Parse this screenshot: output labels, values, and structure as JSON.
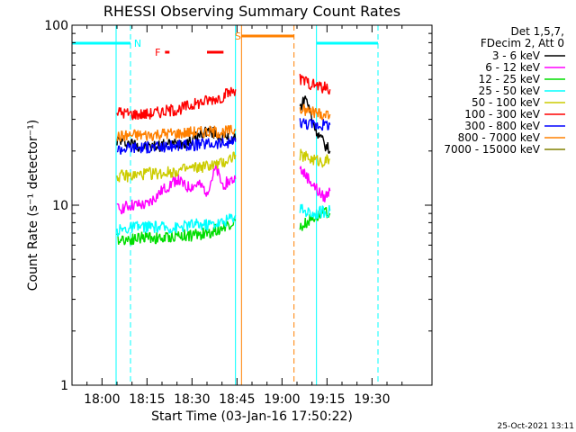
{
  "chart_data": {
    "type": "line",
    "title": "RHESSI Observing Summary Count Rates",
    "xlabel": "Start Time (03-Jan-16 17:50:22)",
    "ylabel": "Count Rate (s⁻¹ detector⁻¹)",
    "yscale": "log",
    "ylim": [
      1,
      100
    ],
    "xlim_minutes": [
      0,
      120
    ],
    "x_tick_labels": [
      "18:00",
      "18:15",
      "18:30",
      "18:45",
      "19:00",
      "19:15",
      "19:30"
    ],
    "y_tick_labels": [
      "1",
      "10",
      "100"
    ],
    "legend_header": [
      "Det 1,5,7,",
      "FDecim 2, Att 0"
    ],
    "legend": [
      {
        "name": "3 - 6 keV",
        "color": "#000000"
      },
      {
        "name": "6 - 12 keV",
        "color": "#ff00ff"
      },
      {
        "name": "12 - 25 keV",
        "color": "#00dd00"
      },
      {
        "name": "25 - 50 keV",
        "color": "#00ffff"
      },
      {
        "name": "50 - 100 keV",
        "color": "#cccc00"
      },
      {
        "name": "100 - 300 keV",
        "color": "#ff0000"
      },
      {
        "name": "300 - 800 keV",
        "color": "#0000ff"
      },
      {
        "name": "800 - 7000 keV",
        "color": "#ff8000"
      },
      {
        "name": "7000 - 15000 keV",
        "color": "#808000"
      }
    ],
    "flags": {
      "N": {
        "label": "N",
        "color": "#00ffff",
        "x_ranges_min": [
          [
            0,
            19.5
          ],
          [
            81.5,
            102
          ]
        ]
      },
      "F": {
        "label": "F",
        "color": "#ff0000",
        "x_ranges_min": [
          [
            31,
            32.5
          ],
          [
            45,
            50.5
          ]
        ]
      },
      "S": {
        "label": "S",
        "color": "#ff8000",
        "x_ranges_min": [
          [
            56.5,
            74
          ]
        ]
      }
    },
    "vertical_markers": [
      {
        "x_min": 14.7,
        "color": "#00ffff",
        "style": "solid"
      },
      {
        "x_min": 19.5,
        "color": "#00ffff",
        "style": "dashed"
      },
      {
        "x_min": 54.5,
        "color": "#00ffff",
        "style": "solid"
      },
      {
        "x_min": 56.5,
        "color": "#ff8000",
        "style": "solid"
      },
      {
        "x_min": 74,
        "color": "#ff8000",
        "style": "dashed"
      },
      {
        "x_min": 81.5,
        "color": "#00ffff",
        "style": "solid"
      },
      {
        "x_min": 102,
        "color": "#00ffff",
        "style": "dashed"
      }
    ],
    "series": [
      {
        "name": "3 - 6 keV",
        "color": "#000000",
        "segments": [
          {
            "t": [
              15,
              25,
              35,
              40,
              45,
              50,
              54.5
            ],
            "y": [
              23,
              21,
              22,
              23,
              26,
              24,
              23
            ]
          },
          {
            "t": [
              76,
              78,
              80,
              82,
              84,
              86
            ],
            "y": [
              35,
              40,
              30,
              25,
              22,
              20
            ]
          }
        ]
      },
      {
        "name": "6 - 12 keV",
        "color": "#ff00ff",
        "segments": [
          {
            "t": [
              15,
              20,
              25,
              30,
              35,
              38,
              42,
              45,
              48,
              50,
              54.5
            ],
            "y": [
              9.5,
              10,
              10,
              12,
              14,
              12.5,
              13,
              12,
              16,
              13,
              14
            ]
          },
          {
            "t": [
              76,
              79,
              82,
              84,
              86
            ],
            "y": [
              16,
              14,
              12,
              11,
              12
            ]
          }
        ]
      },
      {
        "name": "12 - 25 keV",
        "color": "#00dd00",
        "segments": [
          {
            "t": [
              15,
              20,
              25,
              30,
              35,
              40,
              45,
              50,
              54.5
            ],
            "y": [
              6.5,
              6.5,
              6.7,
              6.5,
              6.8,
              6.8,
              7,
              7.5,
              8.2
            ]
          },
          {
            "t": [
              76,
              80,
              84,
              86
            ],
            "y": [
              7.5,
              8.5,
              9,
              9
            ]
          }
        ]
      },
      {
        "name": "25 - 50 keV",
        "color": "#00ffff",
        "segments": [
          {
            "t": [
              15,
              20,
              25,
              30,
              35,
              40,
              45,
              50,
              54.5
            ],
            "y": [
              7.2,
              7.5,
              7.6,
              7.5,
              7.5,
              7.8,
              7.8,
              8,
              8.8
            ]
          },
          {
            "t": [
              76,
              80,
              84,
              86
            ],
            "y": [
              9.5,
              9,
              9.2,
              9.3
            ]
          }
        ]
      },
      {
        "name": "50 - 100 keV",
        "color": "#cccc00",
        "segments": [
          {
            "t": [
              15,
              20,
              25,
              30,
              35,
              40,
              45,
              50,
              54.5
            ],
            "y": [
              14.5,
              14.5,
              15,
              15,
              15.5,
              16,
              16.5,
              17,
              19
            ]
          },
          {
            "t": [
              76,
              80,
              84,
              86
            ],
            "y": [
              19,
              18,
              17.5,
              18
            ]
          }
        ]
      },
      {
        "name": "100 - 300 keV",
        "color": "#ff0000",
        "segments": [
          {
            "t": [
              15,
              20,
              25,
              30,
              35,
              40,
              45,
              50,
              54.5
            ],
            "y": [
              33,
              32,
              32,
              33,
              34,
              36,
              38,
              40,
              44
            ]
          },
          {
            "t": [
              76,
              80,
              84,
              86
            ],
            "y": [
              50,
              47,
              45,
              44
            ]
          }
        ]
      },
      {
        "name": "300 - 800 keV",
        "color": "#0000ff",
        "segments": [
          {
            "t": [
              15,
              20,
              25,
              30,
              35,
              40,
              45,
              50,
              54.5
            ],
            "y": [
              20.5,
              21,
              21,
              21,
              21.5,
              21.5,
              22,
              22,
              22.5
            ]
          },
          {
            "t": [
              76,
              80,
              84,
              86
            ],
            "y": [
              29,
              28,
              28,
              28
            ]
          }
        ]
      },
      {
        "name": "800 - 7000 keV",
        "color": "#ff8000",
        "segments": [
          {
            "t": [
              15,
              20,
              25,
              30,
              35,
              40,
              45,
              50,
              54.5
            ],
            "y": [
              24,
              24.5,
              24.5,
              25,
              25,
              25.5,
              25.5,
              25.5,
              26
            ]
          },
          {
            "t": [
              76,
              80,
              84,
              86
            ],
            "y": [
              34,
              33,
              32,
              32
            ]
          }
        ]
      },
      {
        "name": "7000 - 15000 keV",
        "color": "#808000",
        "segments": []
      }
    ]
  },
  "timestamp": "25-Oct-2021 13:11"
}
